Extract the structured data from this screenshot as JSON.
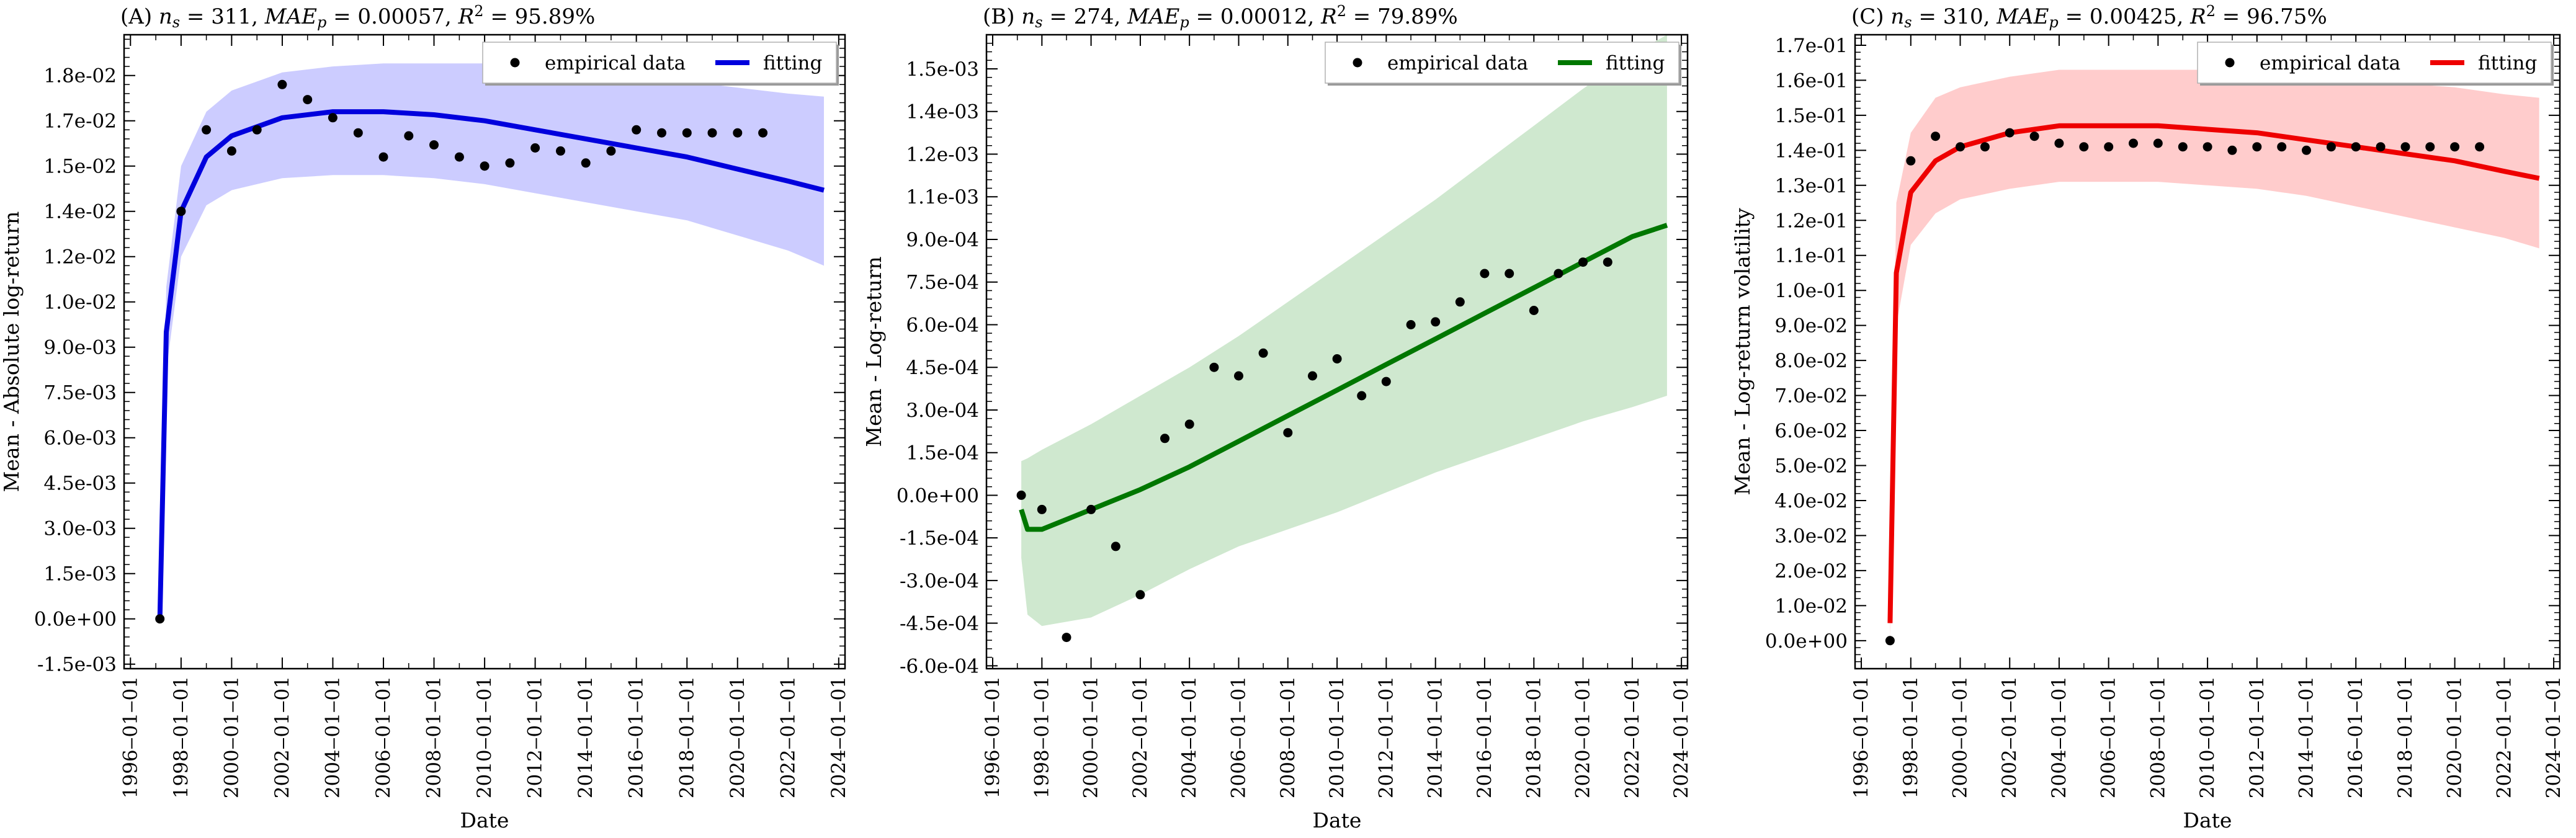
{
  "chart_data": [
    {
      "type": "scatter",
      "title": "(A) n_s = 311, MAE_p = 0.00057, R² = 95.89%",
      "title_parts": {
        "prefix": "(A)",
        "n": "311",
        "mae": "0.00057",
        "r2": "95.89%"
      },
      "xlabel": "Date",
      "ylabel": "Mean - Absolute log-return",
      "xlim": [
        "1995-10-01",
        "2024-04-01"
      ],
      "ylim": [
        -0.00165,
        0.01935
      ],
      "yticks": [
        -0.0015,
        0,
        0.0015,
        0.003,
        0.0045,
        0.006,
        0.0075,
        0.009,
        0.0105,
        0.012,
        0.0135,
        0.015,
        0.0165,
        0.018
      ],
      "ytick_labels": [
        "-1.5e-03",
        "0.0e+00",
        "1.5e-03",
        "3.0e-03",
        "4.5e-03",
        "6.0e-03",
        "7.5e-03",
        "9.0e-03",
        "1.0e-02",
        "1.2e-02",
        "1.4e-02",
        "1.5e-02",
        "1.7e-02",
        "1.8e-02"
      ],
      "grid": false,
      "legend": {
        "position": "top-right",
        "entries": [
          "empirical data",
          "fitting"
        ]
      },
      "colors": {
        "line": "#0000dd",
        "band": "#ccccff"
      },
      "series": [
        {
          "name": "empirical data",
          "kind": "scatter",
          "x": [
            "1997-03-01",
            "1998-01-01",
            "1999-01-01",
            "2000-01-01",
            "2001-01-01",
            "2002-01-01",
            "2003-01-01",
            "2004-01-01",
            "2005-01-01",
            "2006-01-01",
            "2007-01-01",
            "2008-01-01",
            "2009-01-01",
            "2010-01-01",
            "2011-01-01",
            "2012-01-01",
            "2013-01-01",
            "2014-01-01",
            "2015-01-01",
            "2016-01-01",
            "2017-01-01",
            "2018-01-01",
            "2019-01-01",
            "2020-01-01",
            "2021-01-01"
          ],
          "y": [
            0.0,
            0.0135,
            0.0162,
            0.0155,
            0.0162,
            0.0177,
            0.0172,
            0.0166,
            0.0161,
            0.0153,
            0.016,
            0.0157,
            0.0153,
            0.015,
            0.0151,
            0.0156,
            0.0155,
            0.0151,
            0.0155,
            0.0162,
            0.0161,
            0.0161,
            0.0161,
            0.0161,
            0.0161
          ]
        },
        {
          "name": "fitting",
          "kind": "line",
          "x": [
            "1997-03-01",
            "1997-06-01",
            "1998-01-01",
            "1999-01-01",
            "2000-01-01",
            "2002-01-01",
            "2004-01-01",
            "2006-01-01",
            "2008-01-01",
            "2010-01-01",
            "2012-01-01",
            "2014-01-01",
            "2016-01-01",
            "2018-01-01",
            "2020-01-01",
            "2022-01-01",
            "2023-06-01"
          ],
          "y": [
            0.0,
            0.0095,
            0.0135,
            0.0153,
            0.016,
            0.0166,
            0.0168,
            0.0168,
            0.0167,
            0.0165,
            0.0162,
            0.0159,
            0.0156,
            0.0153,
            0.0149,
            0.0145,
            0.0142
          ],
          "band_upper": [
            0.0,
            0.011,
            0.015,
            0.0168,
            0.0175,
            0.0181,
            0.0183,
            0.0184,
            0.0184,
            0.0184,
            0.0183,
            0.0181,
            0.018,
            0.0178,
            0.0176,
            0.0174,
            0.0173
          ],
          "band_lower": [
            0.0,
            0.0082,
            0.012,
            0.0137,
            0.0142,
            0.0146,
            0.0147,
            0.0147,
            0.0146,
            0.0144,
            0.0141,
            0.0138,
            0.0135,
            0.0132,
            0.0127,
            0.0122,
            0.0117
          ]
        }
      ]
    },
    {
      "type": "scatter",
      "title": "(B) n_s = 274, MAE_p = 0.00012, R² = 79.89%",
      "title_parts": {
        "prefix": "(B)",
        "n": "274",
        "mae": "0.00012",
        "r2": "79.89%"
      },
      "xlabel": "Date",
      "ylabel": "Mean - Log-return",
      "xlim": [
        "1995-10-01",
        "2024-04-01"
      ],
      "ylim": [
        -0.00061,
        0.00162
      ],
      "yticks": [
        -0.0006,
        -0.00045,
        -0.0003,
        -0.00015,
        0,
        0.00015,
        0.0003,
        0.00045,
        0.0006,
        0.00075,
        0.0009,
        0.00105,
        0.0012,
        0.00135,
        0.0015
      ],
      "ytick_labels": [
        "-6.0e-04",
        "-4.5e-04",
        "-3.0e-04",
        "-1.5e-04",
        "0.0e+00",
        "1.5e-04",
        "3.0e-04",
        "4.5e-04",
        "6.0e-04",
        "7.5e-04",
        "9.0e-04",
        "1.1e-03",
        "1.2e-03",
        "1.4e-03",
        "1.5e-03"
      ],
      "grid": false,
      "legend": {
        "position": "top-right",
        "entries": [
          "empirical data",
          "fitting"
        ]
      },
      "colors": {
        "line": "#007700",
        "band": "#cfe8cf"
      },
      "series": [
        {
          "name": "empirical data",
          "kind": "scatter",
          "x": [
            "1997-03-01",
            "1998-01-01",
            "1999-01-01",
            "2000-01-01",
            "2001-01-01",
            "2002-01-01",
            "2003-01-01",
            "2004-01-01",
            "2005-01-01",
            "2006-01-01",
            "2007-01-01",
            "2008-01-01",
            "2009-01-01",
            "2010-01-01",
            "2011-01-01",
            "2012-01-01",
            "2013-01-01",
            "2014-01-01",
            "2015-01-01",
            "2016-01-01",
            "2017-01-01",
            "2018-01-01",
            "2019-01-01",
            "2020-01-01",
            "2021-01-01"
          ],
          "y": [
            0.0,
            -5e-05,
            -0.0005,
            -5e-05,
            -0.00018,
            -0.00035,
            0.0002,
            0.00025,
            0.00045,
            0.00042,
            0.0005,
            0.00022,
            0.00042,
            0.00048,
            0.00035,
            0.0004,
            0.0006,
            0.00061,
            0.00068,
            0.00078,
            0.00078,
            0.00065,
            0.00078,
            0.00082,
            0.00082
          ]
        },
        {
          "name": "fitting",
          "kind": "line",
          "x": [
            "1997-03-01",
            "1997-06-01",
            "1998-01-01",
            "2000-01-01",
            "2002-01-01",
            "2004-01-01",
            "2006-01-01",
            "2008-01-01",
            "2010-01-01",
            "2012-01-01",
            "2014-01-01",
            "2016-01-01",
            "2018-01-01",
            "2020-01-01",
            "2022-01-01",
            "2023-06-01"
          ],
          "y": [
            -5e-05,
            -0.00012,
            -0.00012,
            -5e-05,
            2e-05,
            0.0001,
            0.00019,
            0.00028,
            0.00037,
            0.00046,
            0.00055,
            0.00064,
            0.00073,
            0.00082,
            0.00091,
            0.00095
          ],
          "band_upper": [
            0.00012,
            0.00013,
            0.00016,
            0.00025,
            0.00035,
            0.00045,
            0.00056,
            0.00068,
            0.0008,
            0.00092,
            0.00104,
            0.00117,
            0.0013,
            0.00143,
            0.00155,
            0.00162
          ],
          "band_lower": [
            -0.00022,
            -0.00042,
            -0.00046,
            -0.00043,
            -0.00035,
            -0.00026,
            -0.00018,
            -0.00012,
            -6e-05,
            1e-05,
            8e-05,
            0.00014,
            0.0002,
            0.00026,
            0.00031,
            0.00035
          ]
        }
      ]
    },
    {
      "type": "scatter",
      "title": "(C) n_s = 310, MAE_p = 0.00425, R² = 96.75%",
      "title_parts": {
        "prefix": "(C)",
        "n": "310",
        "mae": "0.00425",
        "r2": "96.75%"
      },
      "xlabel": "Date",
      "ylabel": "Mean - Log-return volatility",
      "xlim": [
        "1995-10-01",
        "2024-04-01"
      ],
      "ylim": [
        -0.008,
        0.173
      ],
      "yticks": [
        0,
        0.01,
        0.02,
        0.03,
        0.04,
        0.05,
        0.06,
        0.07,
        0.08,
        0.09,
        0.1,
        0.11,
        0.12,
        0.13,
        0.14,
        0.15,
        0.16,
        0.17
      ],
      "ytick_labels": [
        "0.0e+00",
        "1.0e-02",
        "2.0e-02",
        "3.0e-02",
        "4.0e-02",
        "5.0e-02",
        "6.0e-02",
        "7.0e-02",
        "8.0e-02",
        "9.0e-02",
        "1.0e-01",
        "1.1e-01",
        "1.2e-01",
        "1.3e-01",
        "1.4e-01",
        "1.5e-01",
        "1.6e-01",
        "1.7e-01"
      ],
      "grid": false,
      "legend": {
        "position": "top-right",
        "entries": [
          "empirical data",
          "fitting"
        ]
      },
      "colors": {
        "line": "#ee0000",
        "band": "#ffcccc"
      },
      "series": [
        {
          "name": "empirical data",
          "kind": "scatter",
          "x": [
            "1997-03-01",
            "1998-01-01",
            "1999-01-01",
            "2000-01-01",
            "2001-01-01",
            "2002-01-01",
            "2003-01-01",
            "2004-01-01",
            "2005-01-01",
            "2006-01-01",
            "2007-01-01",
            "2008-01-01",
            "2009-01-01",
            "2010-01-01",
            "2011-01-01",
            "2012-01-01",
            "2013-01-01",
            "2014-01-01",
            "2015-01-01",
            "2016-01-01",
            "2017-01-01",
            "2018-01-01",
            "2019-01-01",
            "2020-01-01",
            "2021-01-01"
          ],
          "y": [
            0.0,
            0.137,
            0.144,
            0.141,
            0.141,
            0.145,
            0.144,
            0.142,
            0.141,
            0.141,
            0.142,
            0.142,
            0.141,
            0.141,
            0.14,
            0.141,
            0.141,
            0.14,
            0.141,
            0.141,
            0.141,
            0.141,
            0.141,
            0.141,
            0.141
          ]
        },
        {
          "name": "fitting",
          "kind": "line",
          "x": [
            "1997-03-01",
            "1997-06-01",
            "1998-01-01",
            "1999-01-01",
            "2000-01-01",
            "2002-01-01",
            "2004-01-01",
            "2006-01-01",
            "2008-01-01",
            "2010-01-01",
            "2012-01-01",
            "2014-01-01",
            "2016-01-01",
            "2018-01-01",
            "2020-01-01",
            "2022-01-01",
            "2023-06-01"
          ],
          "y": [
            0.005,
            0.105,
            0.128,
            0.137,
            0.141,
            0.145,
            0.147,
            0.147,
            0.147,
            0.146,
            0.145,
            0.143,
            0.141,
            0.139,
            0.137,
            0.134,
            0.132
          ],
          "band_upper": [
            0.02,
            0.125,
            0.145,
            0.155,
            0.158,
            0.161,
            0.163,
            0.163,
            0.163,
            0.163,
            0.162,
            0.161,
            0.16,
            0.159,
            0.158,
            0.156,
            0.155
          ],
          "band_lower": [
            0.0,
            0.09,
            0.113,
            0.122,
            0.126,
            0.129,
            0.131,
            0.131,
            0.131,
            0.13,
            0.129,
            0.127,
            0.124,
            0.121,
            0.118,
            0.115,
            0.112
          ]
        }
      ]
    }
  ],
  "xtick_labels": [
    "1996‒01‒01",
    "1998‒01‒01",
    "2000‒01‒01",
    "2002‒01‒01",
    "2004‒01‒01",
    "2006‒01‒01",
    "2008‒01‒01",
    "2010‒01‒01",
    "2012‒01‒01",
    "2014‒01‒01",
    "2016‒01‒01",
    "2018‒01‒01",
    "2020‒01‒01",
    "2022‒01‒01",
    "2024‒01‒01"
  ]
}
